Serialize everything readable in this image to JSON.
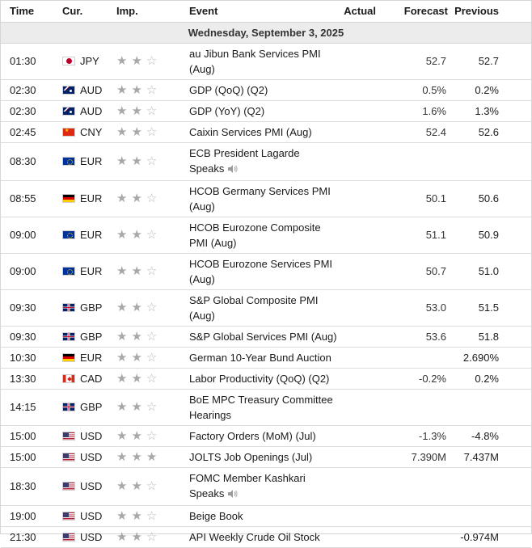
{
  "headers": {
    "time": "Time",
    "currency": "Cur.",
    "importance": "Imp.",
    "event": "Event",
    "actual": "Actual",
    "forecast": "Forecast",
    "previous": "Previous"
  },
  "day_label": "Wednesday, September 3, 2025",
  "icons": {
    "star": "star-icon",
    "speaker": "speaker-icon"
  },
  "colors": {
    "star_filled": "#a8a8a8",
    "star_empty": "#b8b8b8",
    "day_row_bg": "#ececec"
  },
  "rows": [
    {
      "time": "01:30",
      "flag": "jp",
      "currency": "JPY",
      "stars": 2,
      "event": "au Jibun Bank Services PMI (Aug)",
      "actual": "",
      "forecast": "52.7",
      "previous": "52.7",
      "speaker": false
    },
    {
      "time": "02:30",
      "flag": "au",
      "currency": "AUD",
      "stars": 2,
      "event": "GDP (QoQ) (Q2)",
      "actual": "",
      "forecast": "0.5%",
      "previous": "0.2%",
      "speaker": false
    },
    {
      "time": "02:30",
      "flag": "au",
      "currency": "AUD",
      "stars": 2,
      "event": "GDP (YoY) (Q2)",
      "actual": "",
      "forecast": "1.6%",
      "previous": "1.3%",
      "speaker": false
    },
    {
      "time": "02:45",
      "flag": "cn",
      "currency": "CNY",
      "stars": 2,
      "event": "Caixin Services PMI (Aug)",
      "actual": "",
      "forecast": "52.4",
      "previous": "52.6",
      "speaker": false
    },
    {
      "time": "08:30",
      "flag": "eu",
      "currency": "EUR",
      "stars": 2,
      "event": "ECB President Lagarde Speaks",
      "actual": "",
      "forecast": "",
      "previous": "",
      "speaker": true
    },
    {
      "time": "08:55",
      "flag": "de",
      "currency": "EUR",
      "stars": 2,
      "event": "HCOB Germany Services PMI (Aug)",
      "actual": "",
      "forecast": "50.1",
      "previous": "50.6",
      "speaker": false
    },
    {
      "time": "09:00",
      "flag": "eu",
      "currency": "EUR",
      "stars": 2,
      "event": "HCOB Eurozone Composite PMI (Aug)",
      "actual": "",
      "forecast": "51.1",
      "previous": "50.9",
      "speaker": false
    },
    {
      "time": "09:00",
      "flag": "eu",
      "currency": "EUR",
      "stars": 2,
      "event": "HCOB Eurozone Services PMI (Aug)",
      "actual": "",
      "forecast": "50.7",
      "previous": "51.0",
      "speaker": false
    },
    {
      "time": "09:30",
      "flag": "gb",
      "currency": "GBP",
      "stars": 2,
      "event": "S&P Global Composite PMI (Aug)",
      "actual": "",
      "forecast": "53.0",
      "previous": "51.5",
      "speaker": false
    },
    {
      "time": "09:30",
      "flag": "gb",
      "currency": "GBP",
      "stars": 2,
      "event": "S&P Global Services PMI (Aug)",
      "actual": "",
      "forecast": "53.6",
      "previous": "51.8",
      "speaker": false
    },
    {
      "time": "10:30",
      "flag": "de",
      "currency": "EUR",
      "stars": 2,
      "event": "German 10-Year Bund Auction",
      "actual": "",
      "forecast": "",
      "previous": "2.690%",
      "speaker": false
    },
    {
      "time": "13:30",
      "flag": "ca",
      "currency": "CAD",
      "stars": 2,
      "event": "Labor Productivity (QoQ) (Q2)",
      "actual": "",
      "forecast": "-0.2%",
      "previous": "0.2%",
      "speaker": false
    },
    {
      "time": "14:15",
      "flag": "gb",
      "currency": "GBP",
      "stars": 2,
      "event": "BoE MPC Treasury Committee Hearings",
      "actual": "",
      "forecast": "",
      "previous": "",
      "speaker": false
    },
    {
      "time": "15:00",
      "flag": "us",
      "currency": "USD",
      "stars": 2,
      "event": "Factory Orders (MoM) (Jul)",
      "actual": "",
      "forecast": "-1.3%",
      "previous": "-4.8%",
      "speaker": false
    },
    {
      "time": "15:00",
      "flag": "us",
      "currency": "USD",
      "stars": 3,
      "event": "JOLTS Job Openings (Jul)",
      "actual": "",
      "forecast": "7.390M",
      "previous": "7.437M",
      "speaker": false
    },
    {
      "time": "18:30",
      "flag": "us",
      "currency": "USD",
      "stars": 2,
      "event": "FOMC Member Kashkari Speaks",
      "actual": "",
      "forecast": "",
      "previous": "",
      "speaker": true
    },
    {
      "time": "19:00",
      "flag": "us",
      "currency": "USD",
      "stars": 2,
      "event": "Beige Book",
      "actual": "",
      "forecast": "",
      "previous": "",
      "speaker": false
    },
    {
      "time": "21:30",
      "flag": "us",
      "currency": "USD",
      "stars": 2,
      "event": "API Weekly Crude Oil Stock",
      "actual": "",
      "forecast": "",
      "previous": "-0.974M",
      "speaker": false
    }
  ]
}
